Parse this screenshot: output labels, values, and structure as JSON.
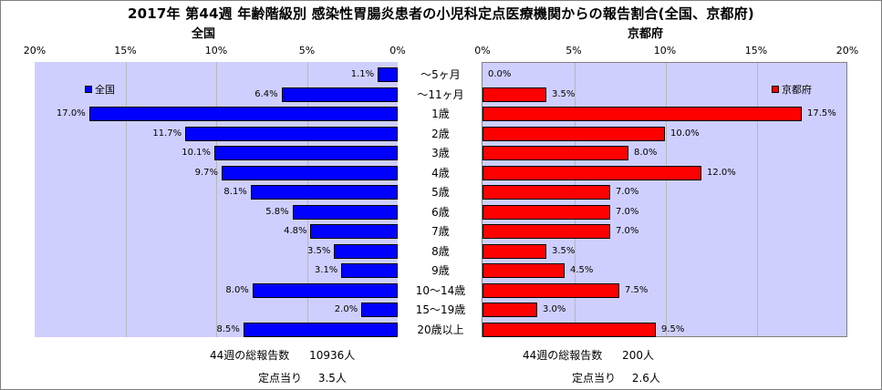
{
  "title": "2017年 第44週 年齢階級別 感染性胃腸炎患者の小児科定点医療機関からの報告割合(全国、京都府)",
  "colors": {
    "national": "#0000ff",
    "kyoto": "#ff0000",
    "plot_bg": "#cfcfff"
  },
  "chart_data": [
    {
      "type": "bar",
      "orientation": "horizontal",
      "direction": "right-to-left",
      "title": "全国",
      "categories": [
        "～5ヶ月",
        "～11ヶ月",
        "1歳",
        "2歳",
        "3歳",
        "4歳",
        "5歳",
        "6歳",
        "7歳",
        "8歳",
        "9歳",
        "10～14歳",
        "15～19歳",
        "20歳以上"
      ],
      "series": [
        {
          "name": "全国",
          "values": [
            1.1,
            6.4,
            17.0,
            11.7,
            10.1,
            9.7,
            8.1,
            5.8,
            4.8,
            3.5,
            3.1,
            8.0,
            2.0,
            8.5
          ]
        }
      ],
      "value_labels": [
        "1.1%",
        "6.4%",
        "17.0%",
        "11.7%",
        "10.1%",
        "9.7%",
        "8.1%",
        "5.8%",
        "4.8%",
        "3.5%",
        "3.1%",
        "8.0%",
        "2.0%",
        "8.5%"
      ],
      "xlim": [
        0,
        20
      ],
      "xticks": [
        20,
        15,
        10,
        5,
        0
      ],
      "xtick_labels": [
        "20%",
        "15%",
        "10%",
        "5%",
        "0%"
      ],
      "grid": true,
      "legend": "top-left"
    },
    {
      "type": "bar",
      "orientation": "horizontal",
      "direction": "left-to-right",
      "title": "京都府",
      "categories": [
        "～5ヶ月",
        "～11ヶ月",
        "1歳",
        "2歳",
        "3歳",
        "4歳",
        "5歳",
        "6歳",
        "7歳",
        "8歳",
        "9歳",
        "10～14歳",
        "15～19歳",
        "20歳以上"
      ],
      "series": [
        {
          "name": "京都府",
          "values": [
            0.0,
            3.5,
            17.5,
            10.0,
            8.0,
            12.0,
            7.0,
            7.0,
            7.0,
            3.5,
            4.5,
            7.5,
            3.0,
            9.5
          ]
        }
      ],
      "value_labels": [
        "0.0%",
        "3.5%",
        "17.5%",
        "10.0%",
        "8.0%",
        "12.0%",
        "7.0%",
        "7.0%",
        "7.0%",
        "3.5%",
        "4.5%",
        "7.5%",
        "3.0%",
        "9.5%"
      ],
      "xlim": [
        0,
        20
      ],
      "xticks": [
        0,
        5,
        10,
        15,
        20
      ],
      "xtick_labels": [
        "0%",
        "5%",
        "10%",
        "15%",
        "20%"
      ],
      "grid": true,
      "legend": "top-right"
    }
  ],
  "footer": {
    "national": {
      "total_label": "44週の総報告数",
      "total_value": "10936人",
      "per_label": "定点当り",
      "per_value": "3.5人"
    },
    "kyoto": {
      "total_label": "44週の総報告数",
      "total_value": "200人",
      "per_label": "定点当り",
      "per_value": "2.6人"
    }
  }
}
